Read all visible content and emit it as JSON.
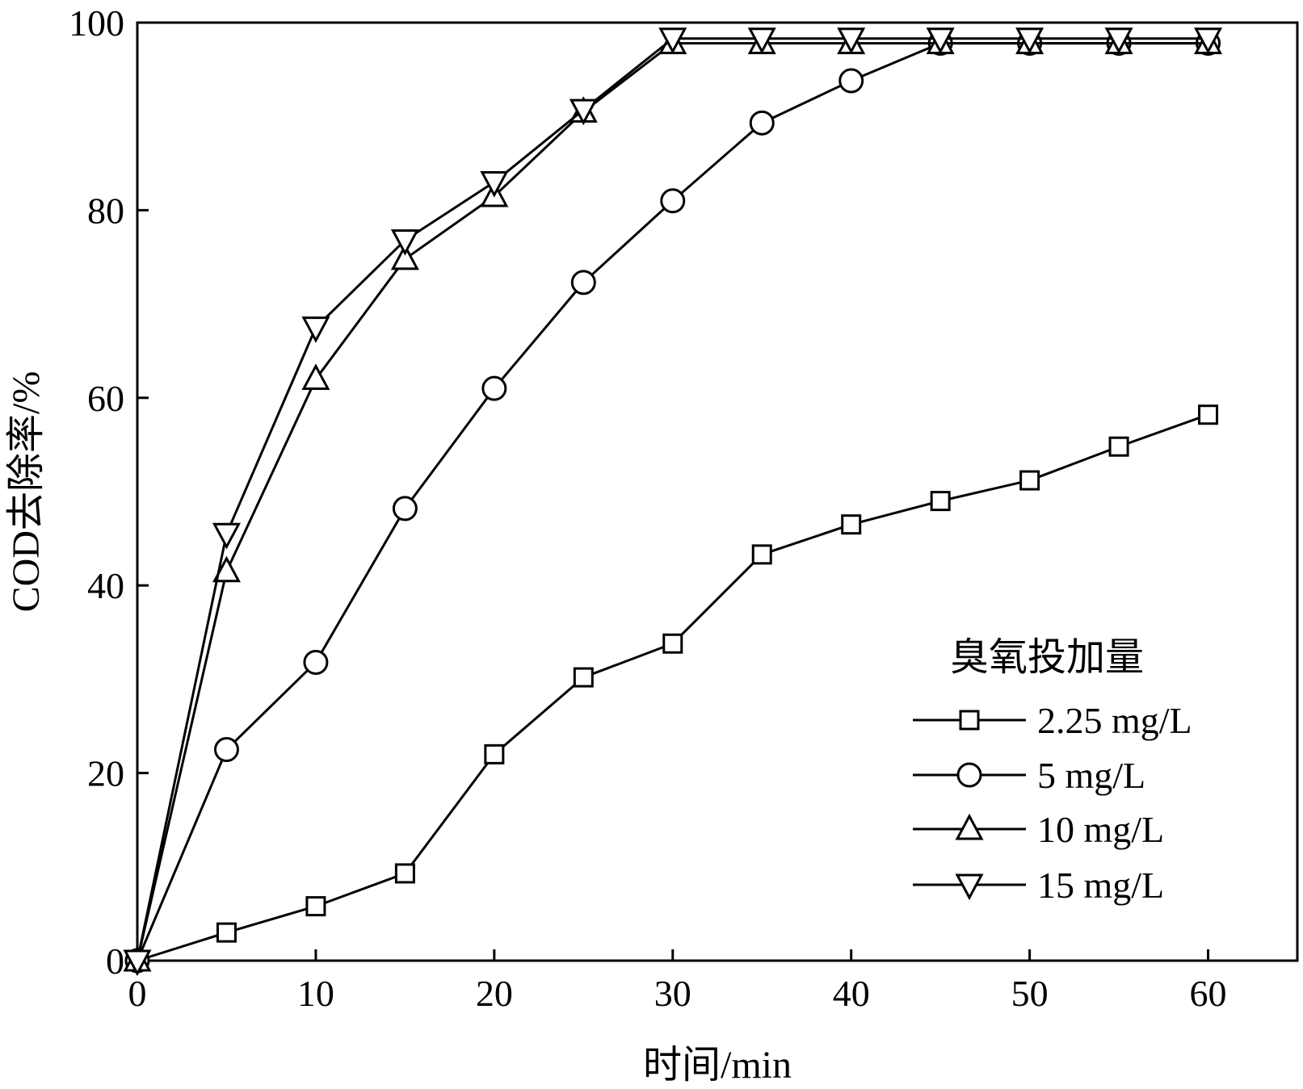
{
  "chart_data": {
    "type": "line",
    "xlabel": "时间/min",
    "ylabel": "COD去除率/%",
    "xlim": [
      0,
      65
    ],
    "ylim": [
      0,
      100
    ],
    "xticks": [
      0,
      10,
      20,
      30,
      40,
      50,
      60
    ],
    "yticks": [
      0,
      20,
      40,
      60,
      80,
      100
    ],
    "grid": false,
    "legend_title": "臭氧投加量",
    "legend_position": "bottom-right",
    "x": [
      0,
      5,
      10,
      15,
      20,
      25,
      30,
      35,
      40,
      45,
      50,
      55,
      60
    ],
    "series": [
      {
        "name": "2.25 mg/L",
        "marker": "square",
        "values": [
          0,
          3,
          5.8,
          9.3,
          22,
          30.2,
          33.8,
          43.3,
          46.5,
          49,
          51.2,
          54.8,
          58.2
        ]
      },
      {
        "name": "5 mg/L",
        "marker": "circle",
        "values": [
          0,
          22.5,
          31.8,
          48.2,
          61,
          72.3,
          81,
          89.3,
          93.8,
          97.8,
          97.8,
          97.8,
          97.8
        ]
      },
      {
        "name": "10 mg/L",
        "marker": "triangle-up",
        "values": [
          0,
          41.5,
          62,
          74.8,
          81.5,
          90.5,
          97.8,
          97.8,
          97.8,
          97.8,
          97.8,
          97.8,
          97.8
        ]
      },
      {
        "name": "15 mg/L",
        "marker": "triangle-down",
        "values": [
          0,
          45.5,
          67.5,
          76.8,
          83,
          90.7,
          98.3,
          98.3,
          98.3,
          98.3,
          98.3,
          98.3,
          98.3
        ]
      }
    ]
  }
}
